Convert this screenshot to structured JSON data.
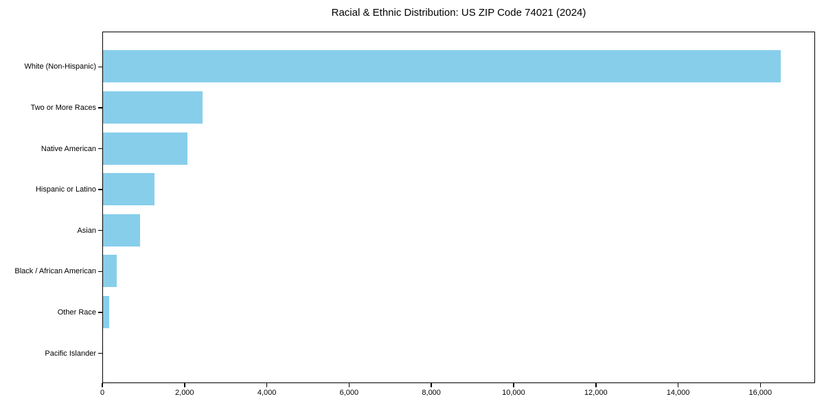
{
  "chart_data": {
    "type": "bar",
    "orientation": "horizontal",
    "title": "Racial & Ethnic Distribution: US ZIP Code 74021 (2024)",
    "categories": [
      "White (Non-Hispanic)",
      "Two or More Races",
      "Native American",
      "Hispanic or Latino",
      "Asian",
      "Black / African American",
      "Other Race",
      "Pacific Islander"
    ],
    "values": [
      16480,
      2420,
      2060,
      1250,
      905,
      340,
      150,
      0
    ],
    "xlabel": "",
    "ylabel": "",
    "xlim": [
      0,
      17330
    ],
    "x_ticks": [
      0,
      2000,
      4000,
      6000,
      8000,
      10000,
      12000,
      14000,
      16000
    ],
    "x_tick_labels": [
      "0",
      "2,000",
      "4,000",
      "6,000",
      "8,000",
      "10,000",
      "12,000",
      "14,000",
      "16,000"
    ],
    "grid": false,
    "legend": null,
    "bar_color": "#87CEEB",
    "frame_color": "#000000",
    "text_color": "#000000",
    "background": "#FFFFFF"
  }
}
